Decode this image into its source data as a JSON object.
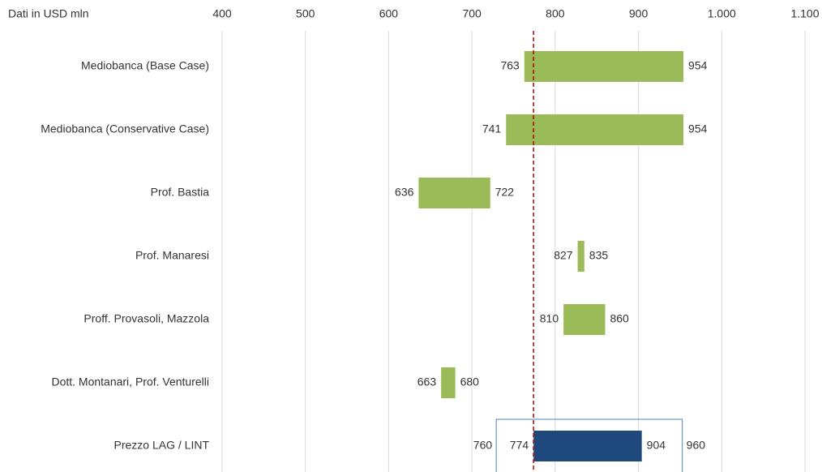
{
  "chart_data": {
    "type": "floating-bar",
    "title": "Dati in USD mln",
    "categories": [
      "Mediobanca (Base Case)",
      "Mediobanca (Conservative Case)",
      "Prof. Bastia",
      "Prof. Manaresi",
      "Proff. Provasoli, Mazzola",
      "Dott. Montanari, Prof. Venturelli",
      "Prezzo LAG / LINT"
    ],
    "low": [
      763,
      741,
      636,
      827,
      810,
      663,
      774
    ],
    "high": [
      954,
      954,
      722,
      835,
      860,
      680,
      904
    ],
    "bar_colors": [
      "#9bbb59",
      "#9bbb59",
      "#9bbb59",
      "#9bbb59",
      "#9bbb59",
      "#9bbb59",
      "#1f497d"
    ],
    "price_range": {
      "low": 760,
      "high": 960
    },
    "reference_line": 774,
    "reference_color": "#c00000",
    "xlim": [
      400,
      1100
    ],
    "xticks": [
      400,
      500,
      600,
      700,
      800,
      900,
      {
        "value": 1000,
        "label": "1.000"
      },
      {
        "value": 1100,
        "label": "1.100"
      }
    ],
    "grid": true
  }
}
